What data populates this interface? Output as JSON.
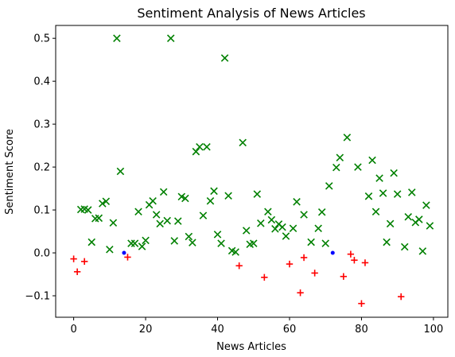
{
  "chart_data": {
    "type": "scatter",
    "title": "Sentiment Analysis of News Articles",
    "xlabel": "News Articles",
    "ylabel": "Sentiment Score",
    "xlim": [
      -5,
      104
    ],
    "ylim": [
      -0.15,
      0.53
    ],
    "xticks": [
      0,
      20,
      40,
      60,
      80,
      100
    ],
    "yticks": [
      -0.1,
      0.0,
      0.1,
      0.2,
      0.3,
      0.4,
      0.5
    ],
    "ytick_labels": [
      "−0.1",
      "0.0",
      "0.1",
      "0.2",
      "0.3",
      "0.4",
      "0.5"
    ],
    "grid": false,
    "series": [
      {
        "marker": "x",
        "color": "#008000",
        "points": [
          [
            2,
            0.101
          ],
          [
            3,
            0.102
          ],
          [
            4,
            0.1
          ],
          [
            5,
            0.025
          ],
          [
            6,
            0.08
          ],
          [
            7,
            0.081
          ],
          [
            8,
            0.115
          ],
          [
            9,
            0.12
          ],
          [
            10,
            0.008
          ],
          [
            11,
            0.07
          ],
          [
            12,
            0.5
          ],
          [
            13,
            0.19
          ],
          [
            16,
            0.022
          ],
          [
            17,
            0.022
          ],
          [
            18,
            0.096
          ],
          [
            19,
            0.015
          ],
          [
            20,
            0.029
          ],
          [
            21,
            0.112
          ],
          [
            22,
            0.121
          ],
          [
            23,
            0.089
          ],
          [
            24,
            0.068
          ],
          [
            25,
            0.142
          ],
          [
            26,
            0.075
          ],
          [
            27,
            0.5
          ],
          [
            28,
            0.028
          ],
          [
            29,
            0.074
          ],
          [
            30,
            0.131
          ],
          [
            31,
            0.127
          ],
          [
            32,
            0.038
          ],
          [
            33,
            0.024
          ],
          [
            34,
            0.236
          ],
          [
            35,
            0.247
          ],
          [
            36,
            0.087
          ],
          [
            37,
            0.247
          ],
          [
            38,
            0.121
          ],
          [
            39,
            0.144
          ],
          [
            40,
            0.043
          ],
          [
            41,
            0.022
          ],
          [
            42,
            0.454
          ],
          [
            43,
            0.133
          ],
          [
            44,
            0.005
          ],
          [
            45,
            0.002
          ],
          [
            47,
            0.257
          ],
          [
            48,
            0.052
          ],
          [
            49,
            0.02
          ],
          [
            50,
            0.022
          ],
          [
            51,
            0.137
          ],
          [
            52,
            0.069
          ],
          [
            54,
            0.096
          ],
          [
            55,
            0.077
          ],
          [
            56,
            0.056
          ],
          [
            57,
            0.067
          ],
          [
            58,
            0.06
          ],
          [
            59,
            0.039
          ],
          [
            61,
            0.057
          ],
          [
            62,
            0.119
          ],
          [
            64,
            0.089
          ],
          [
            66,
            0.025
          ],
          [
            68,
            0.057
          ],
          [
            69,
            0.095
          ],
          [
            70,
            0.022
          ],
          [
            71,
            0.156
          ],
          [
            73,
            0.199
          ],
          [
            74,
            0.222
          ],
          [
            76,
            0.269
          ],
          [
            79,
            0.2
          ],
          [
            82,
            0.132
          ],
          [
            83,
            0.216
          ],
          [
            84,
            0.096
          ],
          [
            85,
            0.174
          ],
          [
            86,
            0.139
          ],
          [
            87,
            0.025
          ],
          [
            88,
            0.068
          ],
          [
            89,
            0.186
          ],
          [
            90,
            0.137
          ],
          [
            92,
            0.014
          ],
          [
            93,
            0.084
          ],
          [
            94,
            0.141
          ],
          [
            95,
            0.071
          ],
          [
            96,
            0.078
          ],
          [
            97,
            0.004
          ],
          [
            98,
            0.111
          ],
          [
            99,
            0.063
          ]
        ]
      },
      {
        "marker": "+",
        "color": "#ff0000",
        "points": [
          [
            0,
            -0.014
          ],
          [
            1,
            -0.044
          ],
          [
            3,
            -0.02
          ],
          [
            15,
            -0.01
          ],
          [
            46,
            -0.03
          ],
          [
            53,
            -0.057
          ],
          [
            60,
            -0.026
          ],
          [
            63,
            -0.093
          ],
          [
            64,
            -0.011
          ],
          [
            67,
            -0.047
          ],
          [
            75,
            -0.055
          ],
          [
            77,
            -0.003
          ],
          [
            78,
            -0.017
          ],
          [
            80,
            -0.118
          ],
          [
            81,
            -0.023
          ],
          [
            91,
            -0.102
          ]
        ]
      },
      {
        "marker": "o",
        "color": "#0000ff",
        "points": [
          [
            14,
            0.0
          ],
          [
            72,
            0.0
          ]
        ]
      }
    ]
  }
}
